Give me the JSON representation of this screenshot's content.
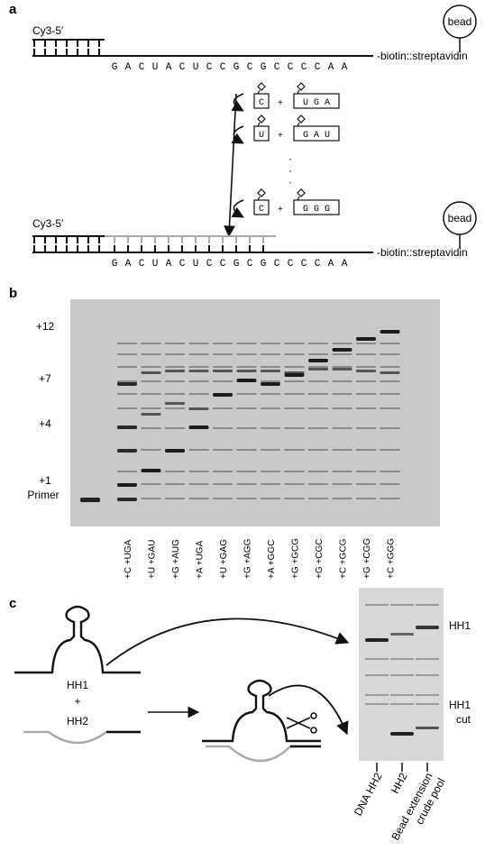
{
  "panel_a": {
    "letter": "a",
    "cy3_label": "Cy3-5′",
    "bead_label": "bead",
    "biotin_label": "-biotin::streptavidin",
    "template_seq": [
      "G",
      "A",
      "C",
      "U",
      "A",
      "C",
      "U",
      "C",
      "C",
      "G",
      "C",
      "G",
      "C",
      "C",
      "C",
      "C",
      "A",
      "A"
    ],
    "reactions": [
      {
        "monomer": "C",
        "trimer": "U G A"
      },
      {
        "monomer": "U",
        "trimer": "G A U"
      },
      {
        "monomer": "C",
        "trimer": "G G G"
      }
    ],
    "plus": "+",
    "ellipsis": "·"
  },
  "panel_b": {
    "letter": "b",
    "size_labels": [
      "+12",
      "+7",
      "+4",
      "+1",
      "Primer"
    ],
    "lane_labels": [
      "+C +UGA",
      "+U +GAU",
      "+G +AUG",
      "+A +UGA",
      "+U +GAG",
      "+G +AGG",
      "+A +GGC",
      "+G +GCG",
      "+G +CGC",
      "+C +GCG",
      "+G +CGG",
      "+C +GGG"
    ]
  },
  "panel_c": {
    "letter": "c",
    "hh1_label": "HH1",
    "hh2_label": "HH2",
    "plus": "+",
    "gel_hh1_label": "HH1",
    "gel_cut_label_1": "HH1",
    "gel_cut_label_2": "cut",
    "lane_labels": [
      "DNA HH2",
      "HH2",
      "Bead extension",
      "crude pool"
    ]
  }
}
